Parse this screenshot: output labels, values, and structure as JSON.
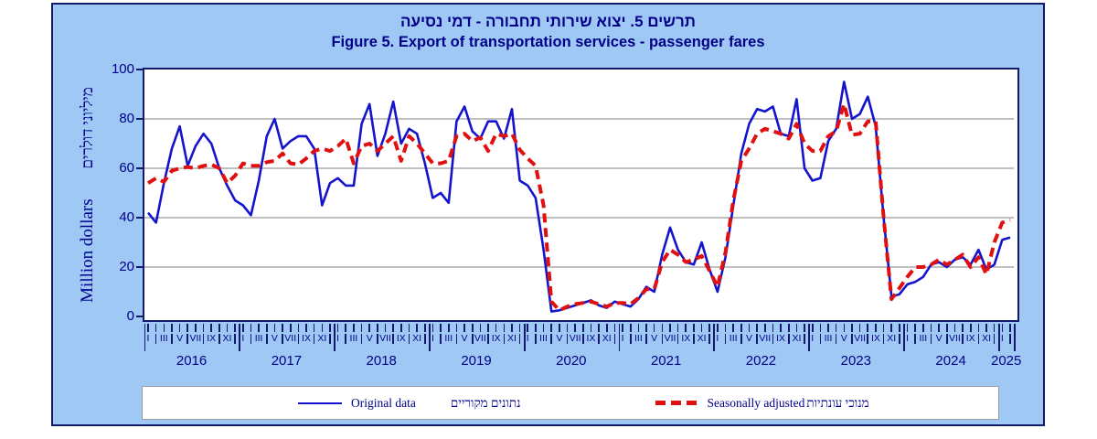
{
  "title": {
    "hebrew": "תרשים 5. יצוא שירותי תחבורה - דמי נסיעה",
    "english": "Figure 5. Export of transportation services - passenger fares"
  },
  "y_axis": {
    "label_hebrew": "מיליוני דולרים",
    "label_english": "Million dollars",
    "ticks": [
      0,
      20,
      40,
      60,
      80,
      100
    ],
    "gridlines": [
      20,
      40,
      60,
      80
    ],
    "min": 0,
    "max": 100
  },
  "x_axis": {
    "years": [
      "2016",
      "2017",
      "2018",
      "2019",
      "2020",
      "2021",
      "2022",
      "2023",
      "2024",
      "2025"
    ],
    "month_labels": [
      "I",
      "III",
      "V",
      "VII",
      "IX",
      "XI"
    ],
    "months_per_year": 12,
    "last_year_months": 2
  },
  "legend": {
    "original": {
      "label_en": "Original data",
      "label_he": "נתונים מקוריים",
      "color": "#1414cc",
      "style": "solid"
    },
    "seasonal": {
      "label_en": "Seasonally adjusted",
      "label_he": "מנוכי עונתיות",
      "color": "#e01010",
      "style": "dashed"
    }
  },
  "colors": {
    "figure_background": "#9fc9f4",
    "plot_background": "#ffffff",
    "frame": "#131a6e",
    "text": "#00008b",
    "gridline": "#808080",
    "original_line": "#1414cc",
    "seasonal_line": "#e01010"
  },
  "chart_data": {
    "type": "line",
    "title": "Figure 5. Export of transportation services - passenger fares",
    "title_hebrew": "תרשים 5. יצוא שירותי תחבורה - דמי נסיעה",
    "x_unit": "month",
    "x_start": "2016-01",
    "x_end": "2025-02",
    "xlabel": "",
    "ylabel": "Million dollars",
    "ylim": [
      0,
      100
    ],
    "grid": "horizontal",
    "legend_position": "bottom",
    "series": [
      {
        "name": "Original data",
        "color": "#1414cc",
        "style": "solid",
        "values": [
          42,
          38,
          54,
          68,
          77,
          61,
          69,
          74,
          70,
          60,
          53,
          47,
          45,
          41,
          55,
          73,
          80,
          68,
          71,
          73,
          73,
          68,
          45,
          54,
          56,
          53,
          53,
          78,
          86,
          65,
          74,
          87,
          70,
          76,
          74,
          62,
          48,
          50,
          46,
          79,
          85,
          75,
          72,
          79,
          79,
          72,
          84,
          55,
          53,
          48,
          27,
          2,
          2.5,
          3.5,
          4.5,
          5.5,
          6.5,
          4.5,
          3.5,
          6,
          5,
          4,
          7,
          12,
          10,
          25,
          36,
          27,
          22,
          21,
          30,
          19,
          10,
          24,
          45,
          66,
          78,
          84,
          83,
          85,
          74,
          73,
          88,
          60,
          55,
          56,
          71,
          76,
          95,
          80,
          82,
          89,
          77,
          40,
          8,
          9,
          13,
          14,
          16,
          21,
          22,
          20,
          23,
          24,
          21,
          27,
          19,
          21,
          31,
          32
        ]
      },
      {
        "name": "Seasonally adjusted",
        "color": "#e01010",
        "style": "dashed",
        "values": [
          54,
          56,
          54.5,
          59,
          60,
          60.5,
          60,
          61,
          61.5,
          60,
          54,
          57,
          62,
          61,
          61,
          62.5,
          63,
          66,
          62,
          61.5,
          64,
          67,
          68,
          67,
          69,
          72,
          62,
          69,
          70,
          67,
          70,
          73,
          63,
          73,
          70,
          66,
          62,
          62,
          63,
          73,
          74,
          71,
          72.5,
          67,
          74,
          73,
          74,
          67.5,
          64,
          61,
          45,
          6,
          2.5,
          4,
          5,
          5.5,
          6,
          5,
          4,
          5.5,
          5.5,
          5,
          7.5,
          11,
          11,
          22,
          27,
          25,
          22,
          23,
          24.5,
          18.5,
          12,
          26,
          47,
          63,
          68,
          74,
          76,
          75,
          74,
          72,
          78,
          70,
          67,
          67,
          73,
          75,
          86,
          73.5,
          74,
          79,
          79,
          40,
          7,
          11.5,
          16,
          20,
          20,
          21,
          23,
          21,
          23,
          25,
          20,
          24,
          17,
          30,
          38,
          39
        ]
      }
    ]
  }
}
